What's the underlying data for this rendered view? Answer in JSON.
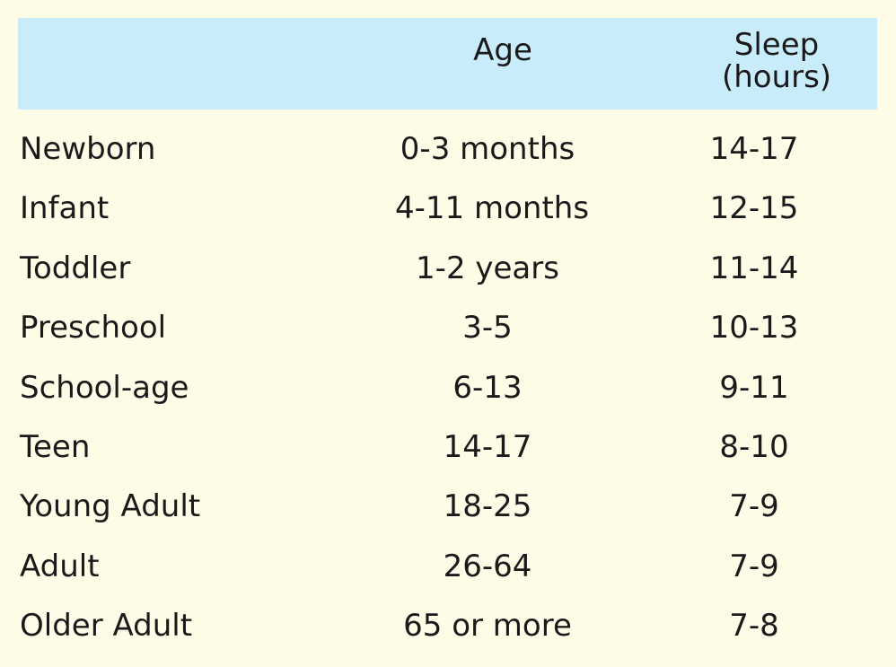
{
  "header": {
    "col_age": "Age",
    "col_sleep_line1": "Sleep",
    "col_sleep_line2": "(hours)"
  },
  "rows": [
    {
      "name": "Newborn",
      "age": "0-3 months",
      "sleep": "14-17"
    },
    {
      "name": "Infant",
      "age": "4-11 months",
      "sleep": "12-15"
    },
    {
      "name": "Toddler",
      "age": "1-2 years",
      "sleep": "11-14"
    },
    {
      "name": "Preschool",
      "age": "3-5",
      "sleep": "10-13"
    },
    {
      "name": "School-age",
      "age": "6-13",
      "sleep": "9-11"
    },
    {
      "name": "Teen",
      "age": "14-17",
      "sleep": "8-10"
    },
    {
      "name": "Young Adult",
      "age": "18-25",
      "sleep": "7-9"
    },
    {
      "name": "Adult",
      "age": "26-64",
      "sleep": "7-9"
    },
    {
      "name": "Older Adult",
      "age": "65 or more",
      "sleep": "7-8"
    }
  ],
  "colors": {
    "background": "#fefbe6",
    "header_background": "#c9ecfb",
    "text": "#1a1a1a"
  }
}
